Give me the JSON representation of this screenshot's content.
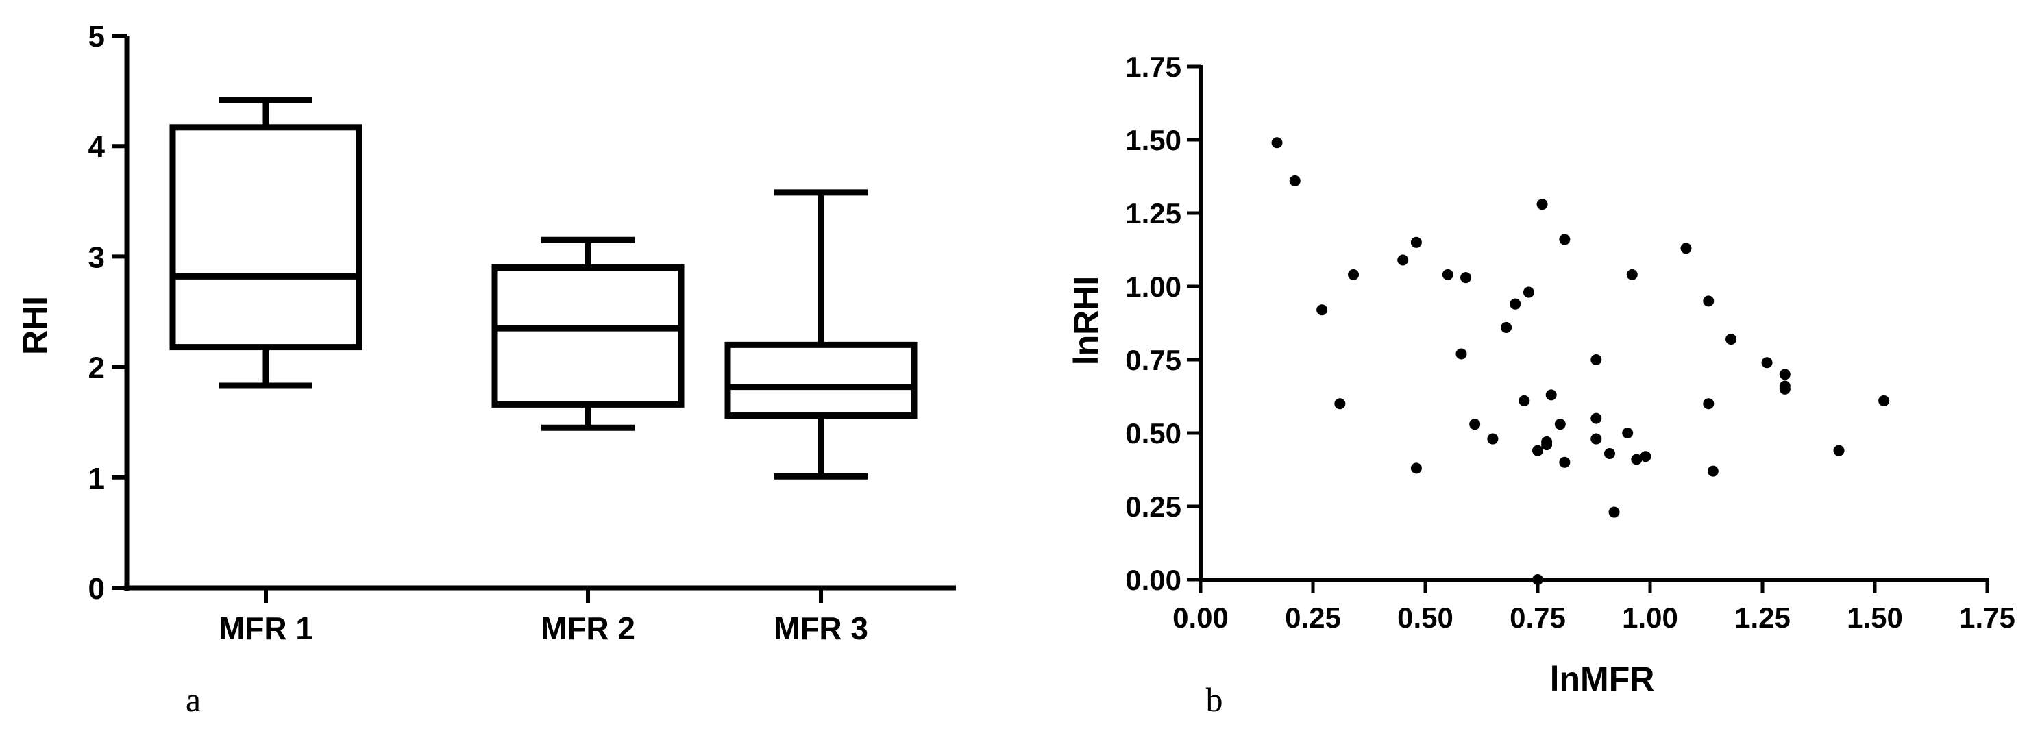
{
  "chart_data": [
    {
      "type": "box",
      "panel_label": "a",
      "title": "",
      "xlabel": "",
      "ylabel": "RHI",
      "ylim": [
        0,
        5
      ],
      "yticks": [
        "0",
        "1",
        "2",
        "3",
        "4",
        "5"
      ],
      "categories": [
        "MFR 1",
        "MFR 2",
        "MFR 3"
      ],
      "boxes": [
        {
          "min": 1.83,
          "q1": 2.18,
          "median": 2.82,
          "q3": 4.17,
          "max": 4.42
        },
        {
          "min": 1.45,
          "q1": 1.66,
          "median": 2.35,
          "q3": 2.9,
          "max": 3.15
        },
        {
          "min": 1.01,
          "q1": 1.56,
          "median": 1.82,
          "q3": 2.2,
          "max": 3.58
        }
      ]
    },
    {
      "type": "scatter",
      "panel_label": "b",
      "title": "",
      "xlabel": "lnMFR",
      "ylabel": "lnRHI",
      "xlim": [
        0,
        1.75
      ],
      "ylim": [
        0,
        1.75
      ],
      "xticks": [
        "0.00",
        "0.25",
        "0.50",
        "0.75",
        "1.00",
        "1.25",
        "1.50",
        "1.75"
      ],
      "yticks": [
        "0.00",
        "0.25",
        "0.50",
        "0.75",
        "1.00",
        "1.25",
        "1.50",
        "1.75"
      ],
      "points": [
        [
          0.17,
          1.49
        ],
        [
          0.21,
          1.36
        ],
        [
          0.27,
          0.92
        ],
        [
          0.31,
          0.6
        ],
        [
          0.34,
          1.04
        ],
        [
          0.45,
          1.09
        ],
        [
          0.48,
          1.15
        ],
        [
          0.48,
          0.38
        ],
        [
          0.55,
          1.04
        ],
        [
          0.58,
          0.77
        ],
        [
          0.59,
          1.03
        ],
        [
          0.61,
          0.53
        ],
        [
          0.65,
          0.48
        ],
        [
          0.68,
          0.86
        ],
        [
          0.7,
          0.94
        ],
        [
          0.72,
          0.61
        ],
        [
          0.73,
          0.98
        ],
        [
          0.75,
          0.0
        ],
        [
          0.75,
          0.44
        ],
        [
          0.76,
          1.28
        ],
        [
          0.77,
          0.47
        ],
        [
          0.77,
          0.46
        ],
        [
          0.78,
          0.63
        ],
        [
          0.8,
          0.53
        ],
        [
          0.81,
          1.16
        ],
        [
          0.81,
          0.4
        ],
        [
          0.88,
          0.75
        ],
        [
          0.88,
          0.55
        ],
        [
          0.88,
          0.48
        ],
        [
          0.91,
          0.43
        ],
        [
          0.92,
          0.23
        ],
        [
          0.95,
          0.5
        ],
        [
          0.96,
          1.04
        ],
        [
          0.97,
          0.41
        ],
        [
          0.99,
          0.42
        ],
        [
          1.08,
          1.13
        ],
        [
          1.13,
          0.95
        ],
        [
          1.13,
          0.6
        ],
        [
          1.14,
          0.37
        ],
        [
          1.18,
          0.82
        ],
        [
          1.26,
          0.74
        ],
        [
          1.3,
          0.7
        ],
        [
          1.3,
          0.66
        ],
        [
          1.3,
          0.65
        ],
        [
          1.42,
          0.44
        ],
        [
          1.52,
          0.61
        ]
      ]
    }
  ]
}
